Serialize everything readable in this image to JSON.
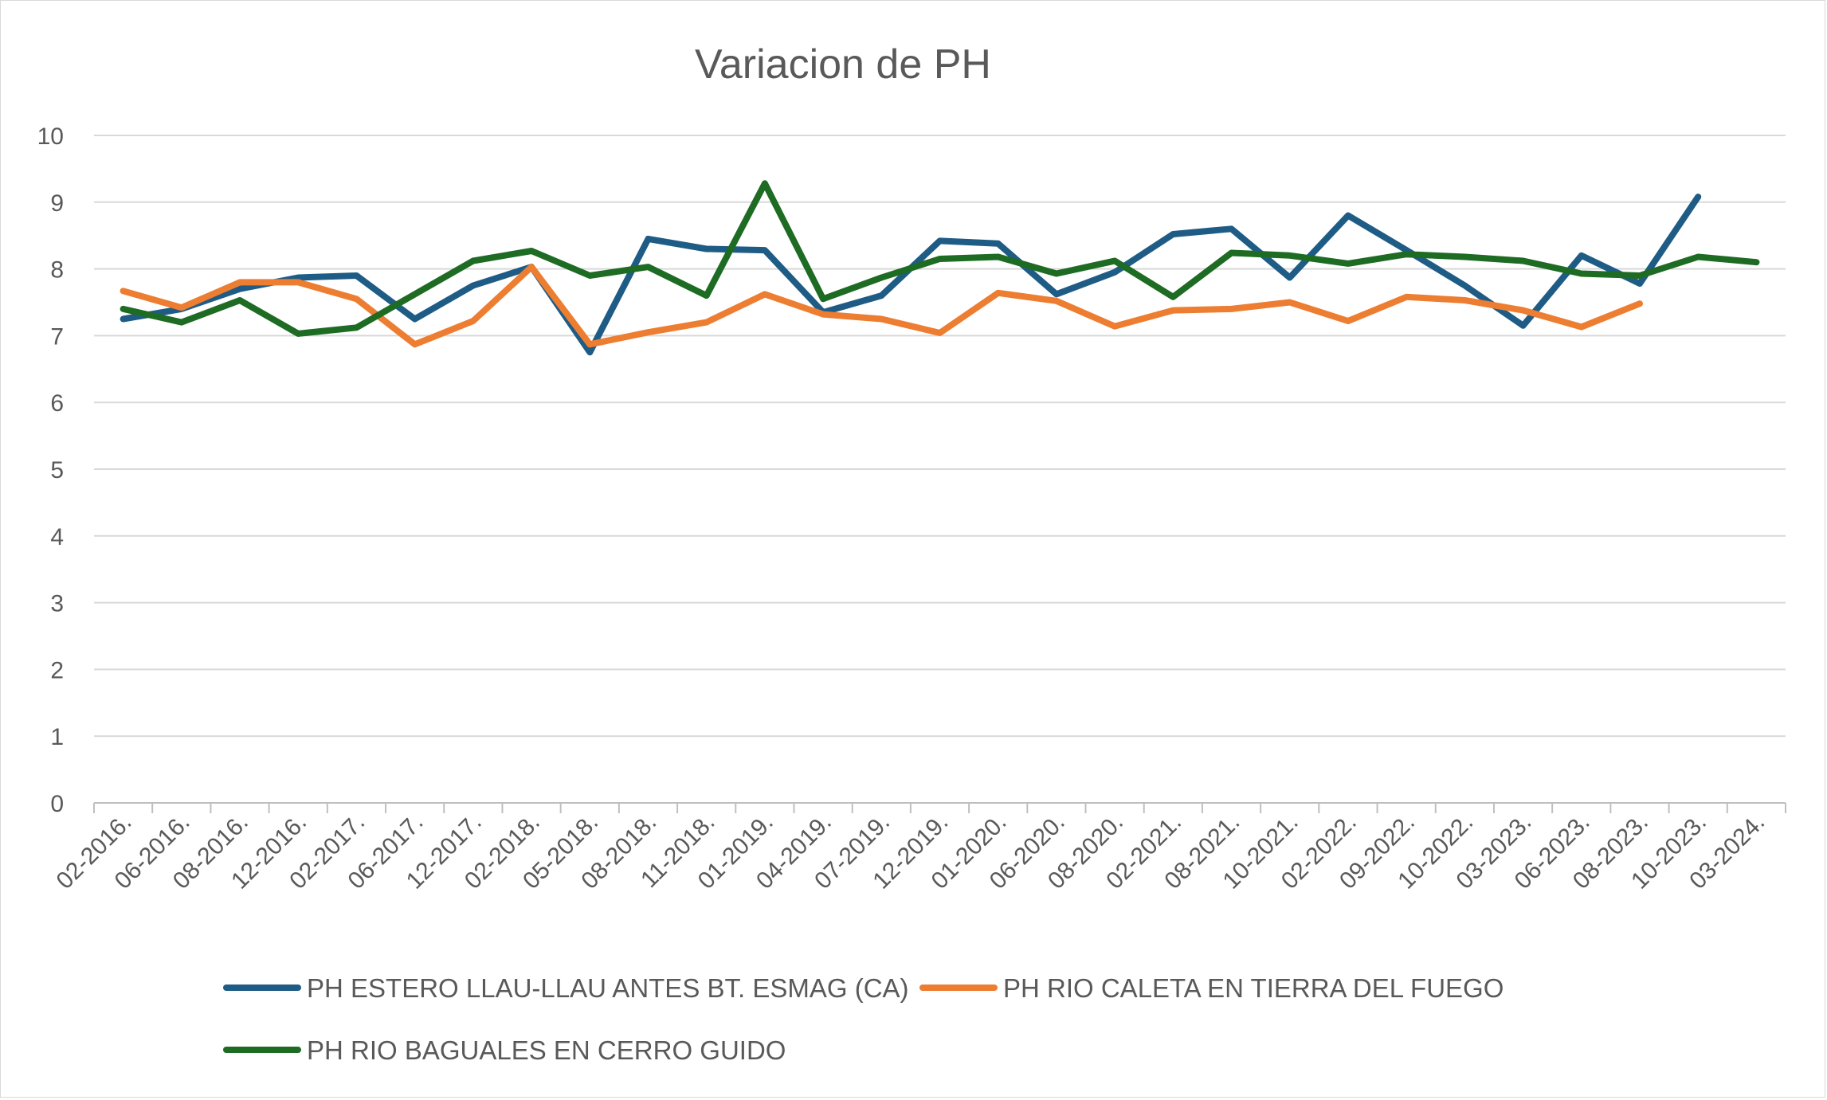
{
  "chart_data": {
    "type": "line",
    "title": "Variacion de PH",
    "xlabel": "",
    "ylabel": "",
    "ylim": [
      0,
      10
    ],
    "yticks": [
      0,
      1,
      2,
      3,
      4,
      5,
      6,
      7,
      8,
      9,
      10
    ],
    "grid": "horizontal",
    "legend_position": "bottom",
    "categories": [
      "02-2016.",
      "06-2016.",
      "08-2016.",
      "12-2016.",
      "02-2017.",
      "06-2017.",
      "12-2017.",
      "02-2018.",
      "05-2018.",
      "08-2018.",
      "11-2018.",
      "01-2019.",
      "04-2019.",
      "07-2019.",
      "12-2019.",
      "01-2020.",
      "06-2020.",
      "08-2020.",
      "02-2021.",
      "08-2021.",
      "10-2021.",
      "02-2022.",
      "09-2022.",
      "10-2022.",
      "03-2023.",
      "06-2023.",
      "08-2023.",
      "10-2023.",
      "03-2024."
    ],
    "series": [
      {
        "name": "PH ESTERO LLAU-LLAU ANTES BT. ESMAG (CA)",
        "color": "#1f5c85",
        "values": [
          7.25,
          7.4,
          7.7,
          7.87,
          7.9,
          7.25,
          7.75,
          8.03,
          6.75,
          8.45,
          8.3,
          8.28,
          7.35,
          7.6,
          8.42,
          8.38,
          7.62,
          7.95,
          8.52,
          8.6,
          7.87,
          8.8,
          8.28,
          7.75,
          7.15,
          8.2,
          7.78,
          9.08,
          null
        ]
      },
      {
        "name": "PH RIO CALETA EN TIERRA DEL FUEGO",
        "color": "#ed7d31",
        "values": [
          7.67,
          7.42,
          7.8,
          7.8,
          7.55,
          6.87,
          7.22,
          8.03,
          6.87,
          7.05,
          7.2,
          7.62,
          7.32,
          7.25,
          7.04,
          7.64,
          7.52,
          7.14,
          7.38,
          7.4,
          7.5,
          7.22,
          7.58,
          7.53,
          7.38,
          7.13,
          7.48,
          null,
          null
        ]
      },
      {
        "name": "PH RIO BAGUALES EN CERRO GUIDO",
        "color": "#1e6b24",
        "values": [
          7.4,
          7.2,
          7.53,
          7.03,
          7.12,
          7.62,
          8.12,
          8.27,
          7.9,
          8.03,
          7.6,
          9.28,
          7.55,
          7.87,
          8.15,
          8.18,
          7.93,
          8.12,
          7.58,
          8.24,
          8.2,
          8.08,
          8.22,
          8.18,
          8.12,
          7.93,
          7.9,
          8.18,
          8.1
        ]
      }
    ]
  }
}
